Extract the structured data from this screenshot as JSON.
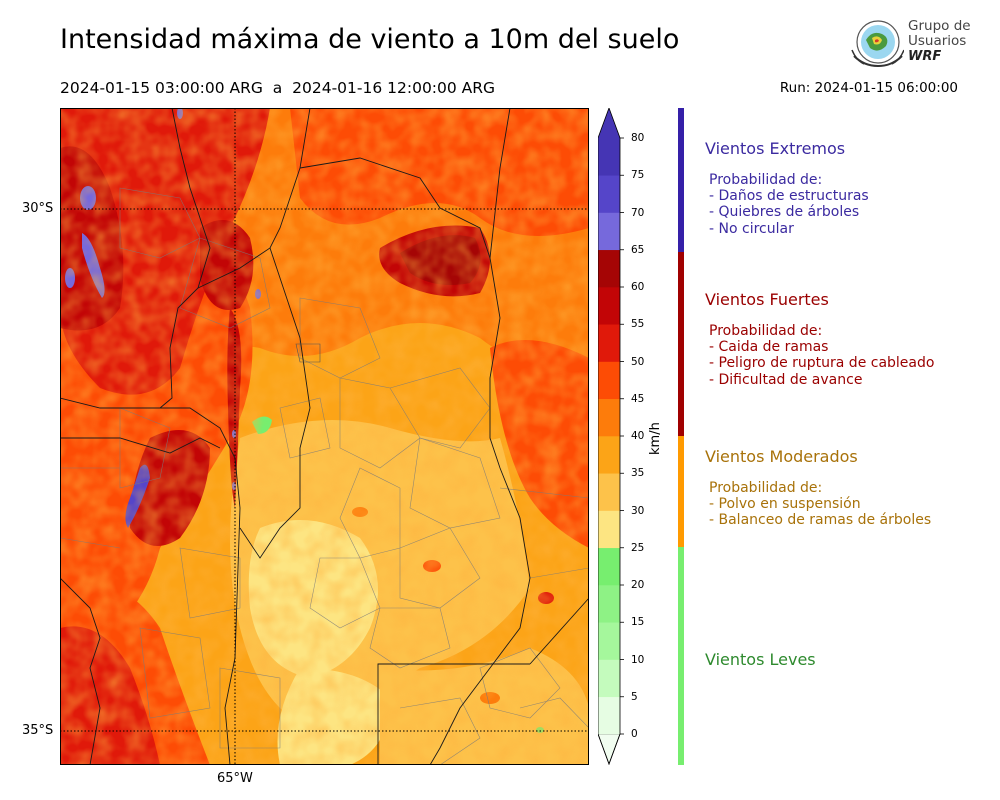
{
  "header": {
    "title": "Intensidad máxima de viento a 10m del suelo",
    "period": "2024-01-15 03:00:00 ARG  a  2024-01-16 12:00:00 ARG",
    "run": "Run: 2024-01-15 06:00:00"
  },
  "logo": {
    "line1": "Grupo de",
    "line2": "Usuarios",
    "line3": "WRF"
  },
  "map": {
    "lat_labels": [
      "30°S",
      "35°S"
    ],
    "lon_labels": [
      "65°W"
    ]
  },
  "colorbar": {
    "unit": "km/h",
    "ticks": [
      "0",
      "5",
      "10",
      "15",
      "20",
      "25",
      "30",
      "35",
      "40",
      "45",
      "50",
      "55",
      "60",
      "65",
      "70",
      "75",
      "80"
    ],
    "colors": [
      "#f1fdf0",
      "#dcfcda",
      "#c4fbbd",
      "#a5f79c",
      "#8ef285",
      "#77ee6f",
      "#fde582",
      "#fdc24a",
      "#fca417",
      "#fd7c0b",
      "#fd4c05",
      "#e0190a",
      "#c20506",
      "#a50505",
      "#7669dc",
      "#5545c9",
      "#4535b4"
    ],
    "extend_color": "#4535b4"
  },
  "categories": [
    {
      "name": "Vientos Extremos",
      "color": "#3b2aa0",
      "bar_color": "#3520a8",
      "lines": [
        "Probabilidad de:",
        "- Daños de estructuras",
        "- Quiebres de árboles",
        "- No circular"
      ]
    },
    {
      "name": "Vientos Fuertes",
      "color": "#9a0000",
      "bar_color": "#a00000",
      "lines": [
        "Probabilidad de:",
        "- Caida de ramas",
        "- Peligro de ruptura de cableado",
        "- Dificultad de avance"
      ]
    },
    {
      "name": "Vientos Moderados",
      "color": "#a8720a",
      "bar_color": "#ff9a00",
      "lines": [
        "Probabilidad de:",
        "- Polvo en suspensión",
        "- Balanceo de ramas de árboles"
      ]
    },
    {
      "name": "Vientos Leves",
      "color": "#2e8a2e",
      "bar_color": "#77ee6f",
      "lines": []
    }
  ]
}
